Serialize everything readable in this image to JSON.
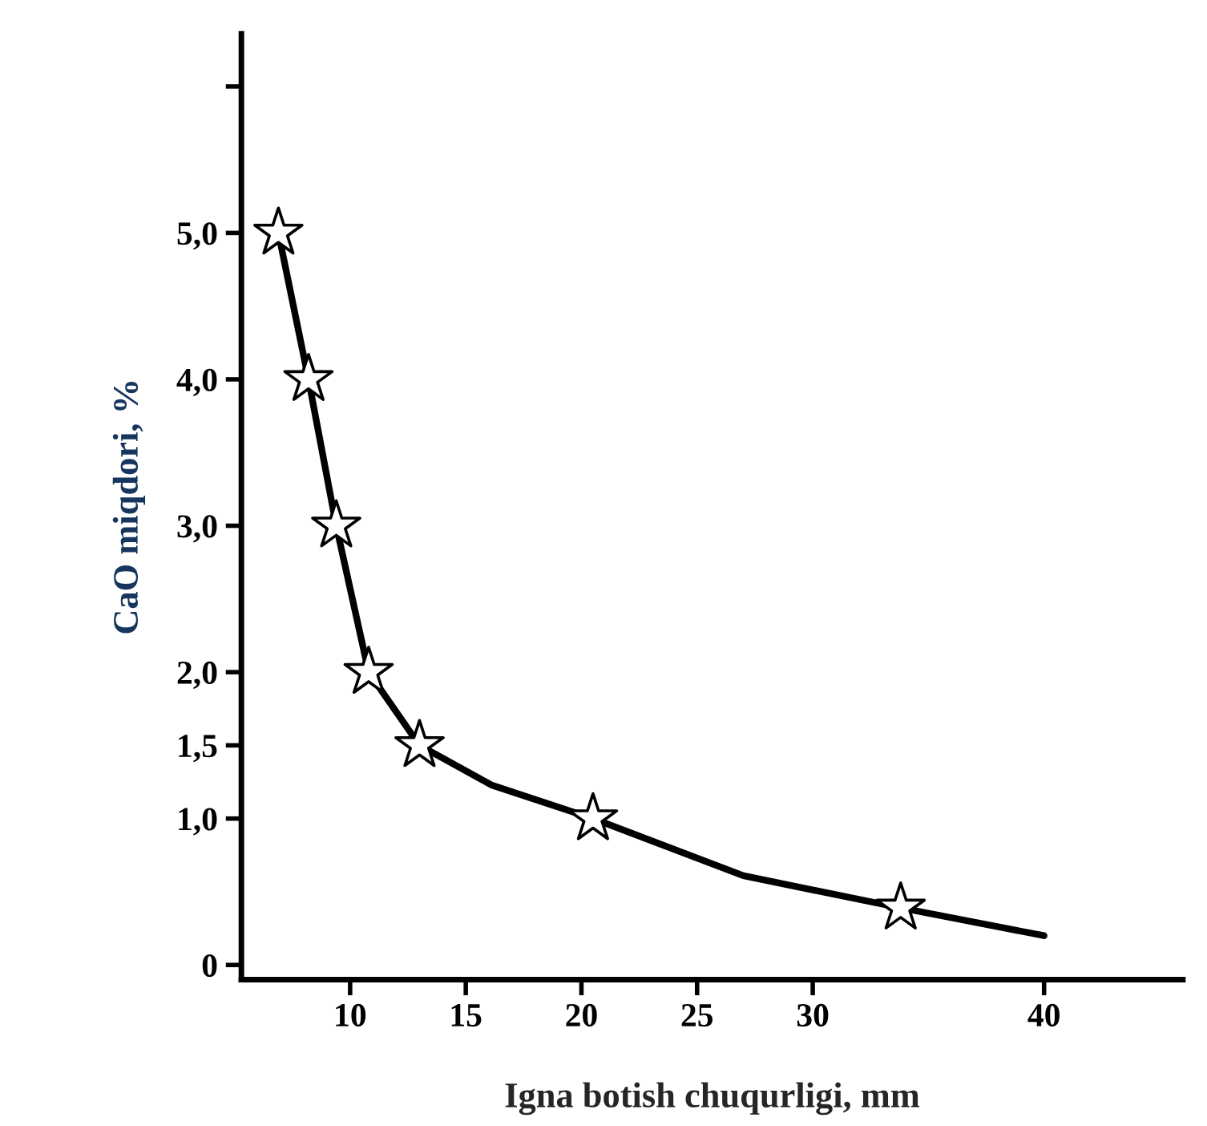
{
  "chart_data": {
    "type": "line",
    "xlabel": "Igna botish chuqurligi, mm",
    "ylabel": "CaO miqdori, %",
    "xlim": [
      5.3,
      46
    ],
    "xticks": [
      10,
      15,
      20,
      25,
      30,
      40
    ],
    "ylim": [
      -0.1,
      6.36
    ],
    "yticks": [
      {
        "value": 0,
        "label": "0"
      },
      {
        "value": 1,
        "label": "1,0"
      },
      {
        "value": 1.5,
        "label": "1,5"
      },
      {
        "value": 2,
        "label": "2,0"
      },
      {
        "value": 3,
        "label": "3,0"
      },
      {
        "value": 4,
        "label": "4,0"
      },
      {
        "value": 5,
        "label": "5,0"
      },
      {
        "value": 6,
        "label": null
      }
    ],
    "grid": false,
    "legend": false,
    "series": [
      {
        "type": "line",
        "color": "#000000",
        "marker": "none",
        "line_style": "solid",
        "x": [
          6.9,
          8.2,
          9.4,
          10.8,
          13.0,
          16.1,
          20.5,
          27.0,
          33.8,
          40
        ],
        "values": [
          5.0,
          4.0,
          3.0,
          2.0,
          1.5,
          1.23,
          1.0,
          0.61,
          0.39,
          0.2
        ]
      },
      {
        "type": "scatter",
        "color": "#000000",
        "marker": "star",
        "x": [
          6.9,
          8.2,
          9.4,
          10.8,
          13.0,
          20.5,
          33.8
        ],
        "values": [
          5.0,
          4.0,
          3.0,
          2.0,
          1.5,
          1.0,
          0.39
        ]
      }
    ]
  }
}
